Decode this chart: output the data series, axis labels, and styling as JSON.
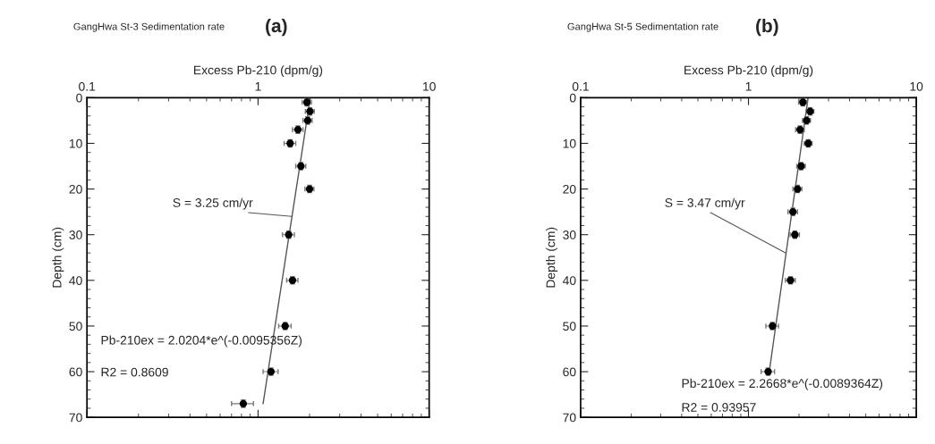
{
  "chart_data": [
    {
      "type": "scatter",
      "title": "GangHwa St-3 Sedimentation rate",
      "subtitle": "(a)",
      "xlabel": "Excess Pb-210 (dpm/g)",
      "ylabel": "Depth (cm)",
      "log": "x",
      "xlim": [
        0.1,
        10
      ],
      "xticks": [
        0.1,
        1,
        10
      ],
      "ylim": [
        70,
        0
      ],
      "yticks": [
        0,
        10,
        20,
        30,
        40,
        50,
        60,
        70
      ],
      "series": [
        {
          "marker": "circle",
          "color": "#000000",
          "x": [
            1.93,
            2.01,
            1.95,
            1.71,
            1.54,
            1.78,
            2.0,
            1.51,
            1.59,
            1.44,
            1.19,
            0.82
          ],
          "values": [
            1,
            3,
            5,
            7,
            10,
            15,
            20,
            30,
            40,
            50,
            60,
            67
          ],
          "xerrors": [
            0.12,
            0.12,
            0.12,
            0.12,
            0.12,
            0.12,
            0.12,
            0.12,
            0.12,
            0.12,
            0.12,
            0.12
          ],
          "errors": [
            0.8,
            0.8,
            0.8,
            0.8,
            0.8,
            0.8,
            0.8,
            0.8,
            0.8,
            0.8,
            0.8,
            0.8
          ]
        },
        {
          "type": "line",
          "color": "#555555",
          "x": [
            2.0204,
            1.07
          ],
          "values": [
            0,
            67
          ]
        }
      ],
      "annotations": [
        {
          "text": "S = 3.25 cm/yr",
          "x": 1.577,
          "y": 26
        },
        "Pb-210ex = 2.0204*e^(-0.0095356Z)",
        "R2 = 0.8609"
      ]
    },
    {
      "type": "scatter",
      "title": "GangHwa St-5 Sedimentation rate",
      "subtitle": "(b)",
      "xlabel": "Excess Pb-210 (dpm/g)",
      "ylabel": "Depth (cm)",
      "log": "x",
      "xlim": [
        0.1,
        10
      ],
      "xticks": [
        0.1,
        1,
        10
      ],
      "ylim": [
        70,
        0
      ],
      "yticks": [
        0,
        10,
        20,
        30,
        40,
        50,
        60,
        70
      ],
      "series": [
        {
          "marker": "circle",
          "color": "#000000",
          "x": [
            2.11,
            2.33,
            2.22,
            2.03,
            2.27,
            2.06,
            1.96,
            1.84,
            1.89,
            1.78,
            1.39,
            1.31
          ],
          "values": [
            1,
            3,
            5,
            7,
            10,
            15,
            20,
            25,
            30,
            40,
            50,
            60
          ],
          "xerrors": [
            0.12,
            0.12,
            0.12,
            0.12,
            0.12,
            0.12,
            0.12,
            0.12,
            0.12,
            0.12,
            0.12,
            0.12
          ],
          "errors": [
            0.8,
            0.8,
            0.8,
            0.8,
            0.8,
            0.8,
            0.8,
            0.8,
            0.8,
            0.8,
            0.8,
            0.8
          ]
        },
        {
          "type": "line",
          "color": "#555555",
          "x": [
            2.2668,
            1.33
          ],
          "values": [
            0,
            60
          ]
        }
      ],
      "annotations": [
        {
          "text": "S = 3.47 cm/yr",
          "x": 1.67,
          "y": 34
        },
        "Pb-210ex = 2.2668*e^(-0.0089364Z)",
        "R2 = 0.93957"
      ]
    }
  ]
}
